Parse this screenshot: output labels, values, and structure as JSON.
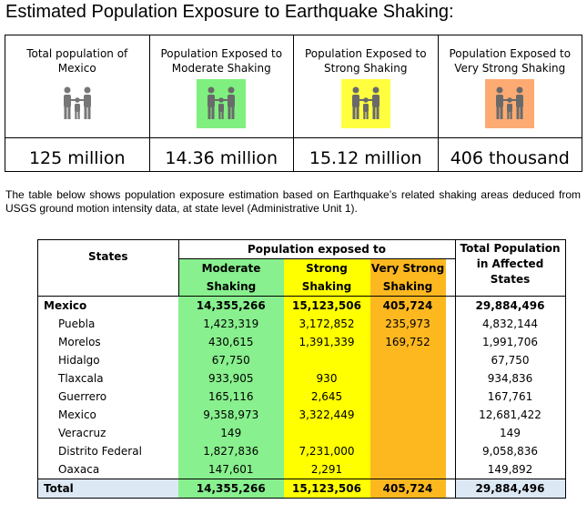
{
  "title": "Estimated Population Exposure to Earthquake Shaking:",
  "cards": [
    {
      "label_line1": "Total population of",
      "label_line2": "Mexico",
      "icon": "people-icon",
      "icon_bg": "#ffffff",
      "value": "125 million"
    },
    {
      "label_line1": "Population Exposed to",
      "label_line2": "Moderate Shaking",
      "icon": "people-icon",
      "icon_bg": "#7ff07f",
      "value": "14.36 million"
    },
    {
      "label_line1": "Population Exposed to",
      "label_line2": "Strong Shaking",
      "icon": "people-icon",
      "icon_bg": "#ffff40",
      "value": "15.12 million"
    },
    {
      "label_line1": "Population Exposed to",
      "label_line2": "Very Strong Shaking",
      "icon": "people-icon",
      "icon_bg": "#fdab72",
      "value": "406 thousand"
    }
  ],
  "paragraph": "The table below shows population exposure estimation based on Earthquake’s related shaking areas deduced from USGS ground motion intensity data, at state level (Administrative Unit 1).",
  "table": {
    "h_states": "States",
    "h_exposed": "Population exposed to",
    "h_total_l1": "Total Population",
    "h_total_l2": "in Affected States",
    "h_mod_l1": "Moderate",
    "h_mod_l2": "Shaking",
    "h_str_l1": "Strong",
    "h_str_l2": "Shaking",
    "h_vs_l1": "Very Strong",
    "h_vs_l2": "Shaking",
    "country": {
      "state": "Mexico",
      "moderate": "14,355,266",
      "strong": "15,123,506",
      "very_strong": "405,724",
      "total": "29,884,496"
    },
    "rows": [
      {
        "state": "Puebla",
        "moderate": "1,423,319",
        "strong": "3,172,852",
        "very_strong": "235,973",
        "total": "4,832,144"
      },
      {
        "state": "Morelos",
        "moderate": "430,615",
        "strong": "1,391,339",
        "very_strong": "169,752",
        "total": "1,991,706"
      },
      {
        "state": "Hidalgo",
        "moderate": "67,750",
        "strong": "",
        "very_strong": "",
        "total": "67,750"
      },
      {
        "state": "Tlaxcala",
        "moderate": "933,905",
        "strong": "930",
        "very_strong": "",
        "total": "934,836"
      },
      {
        "state": "Guerrero",
        "moderate": "165,116",
        "strong": "2,645",
        "very_strong": "",
        "total": "167,761"
      },
      {
        "state": "Mexico",
        "moderate": "9,358,973",
        "strong": "3,322,449",
        "very_strong": "",
        "total": "12,681,422"
      },
      {
        "state": "Veracruz",
        "moderate": "149",
        "strong": "",
        "very_strong": "",
        "total": "149"
      },
      {
        "state": "Distrito Federal",
        "moderate": "1,827,836",
        "strong": "7,231,000",
        "very_strong": "",
        "total": "9,058,836"
      },
      {
        "state": "Oaxaca",
        "moderate": "147,601",
        "strong": "2,291",
        "very_strong": "",
        "total": "149,892"
      }
    ],
    "total": {
      "state": "Total",
      "moderate": "14,355,266",
      "strong": "15,123,506",
      "very_strong": "405,724",
      "total": "29,884,496"
    }
  }
}
